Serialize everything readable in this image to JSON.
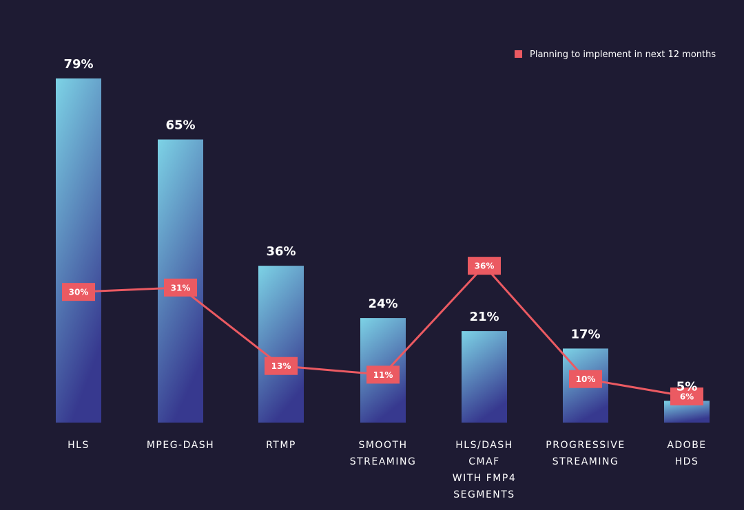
{
  "chart_data": {
    "type": "bar",
    "categories": [
      [
        "HLS"
      ],
      [
        "MPEG-DASH"
      ],
      [
        "RTMP"
      ],
      [
        "SMOOTH",
        "STREAMING"
      ],
      [
        "HLS/DASH",
        "CMAF",
        "WITH FMP4",
        "SEGMENTS"
      ],
      [
        "PROGRESSIVE",
        "STREAMING"
      ],
      [
        "ADOBE",
        "HDS"
      ]
    ],
    "series": [
      {
        "values": [
          79,
          65,
          36,
          24,
          21,
          17,
          5
        ],
        "value_labels": [
          "79%",
          "65%",
          "36%",
          "24%",
          "21%",
          "17%",
          "5%"
        ]
      },
      {
        "name": "Planning to implement in next 12 months",
        "type": "line",
        "values": [
          30,
          31,
          13,
          11,
          36,
          10,
          6
        ],
        "value_labels": [
          "30%",
          "31%",
          "13%",
          "11%",
          "36%",
          "10%",
          "6%"
        ]
      }
    ],
    "ylim": [
      0,
      79
    ],
    "grid": false,
    "legend_position": "top-right",
    "colors": {
      "background": "#1e1b33",
      "bar_top": "#7dd3e6",
      "bar_bottom": "#37398f",
      "line": "#eb5a62",
      "label_text": "#ffffff"
    }
  }
}
